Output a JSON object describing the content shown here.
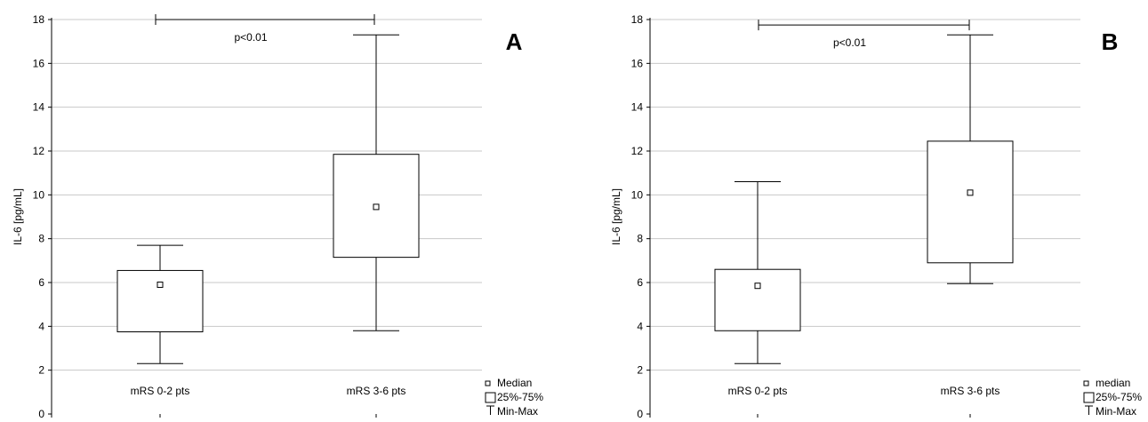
{
  "chart_data": [
    {
      "type": "box",
      "panel_label": "A",
      "ylabel": "IL-6 [pg/mL]",
      "ylim": [
        0,
        18
      ],
      "yticks": [
        0,
        2,
        4,
        6,
        8,
        10,
        12,
        14,
        16,
        18
      ],
      "grid": true,
      "categories": [
        "mRS 0-2 pts",
        "mRS 3-6 pts"
      ],
      "boxes": [
        {
          "category": "mRS 0-2 pts",
          "min": 2.3,
          "q1": 3.75,
          "median": 5.9,
          "q3": 6.55,
          "max": 7.7
        },
        {
          "category": "mRS 3-6 pts",
          "min": 3.8,
          "q1": 7.15,
          "median": 9.45,
          "q3": 11.85,
          "max": 17.3
        }
      ],
      "significance": {
        "label": "p<0.01",
        "y": 18.0
      },
      "legend": {
        "position": "bottom-right",
        "items": [
          "Median",
          "25%-75%",
          "Min-Max"
        ]
      }
    },
    {
      "type": "box",
      "panel_label": "B",
      "ylabel": "IL-6  [pg/mL]",
      "ylim": [
        0,
        18
      ],
      "yticks": [
        0,
        2,
        4,
        6,
        8,
        10,
        12,
        14,
        16,
        18
      ],
      "grid": true,
      "categories": [
        "mRS 0-2 pts",
        "mRS 3-6 pts"
      ],
      "boxes": [
        {
          "category": "mRS 0-2 pts",
          "min": 2.3,
          "q1": 3.8,
          "median": 5.85,
          "q3": 6.6,
          "max": 10.6
        },
        {
          "category": "mRS 3-6 pts",
          "min": 5.95,
          "q1": 6.9,
          "median": 10.1,
          "q3": 12.45,
          "max": 17.3
        }
      ],
      "significance": {
        "label": "p<0.01",
        "y": 17.75
      },
      "legend": {
        "position": "bottom-right",
        "items": [
          "median",
          "25%-75%",
          "Min-Max"
        ]
      }
    }
  ],
  "colors": {
    "axis": "#000000",
    "grid": "#c8c8c8",
    "box_fill": "#ffffff"
  },
  "icons": {
    "median_marker": "small-square",
    "box_marker": "square",
    "range_marker": "whisker-bar"
  }
}
